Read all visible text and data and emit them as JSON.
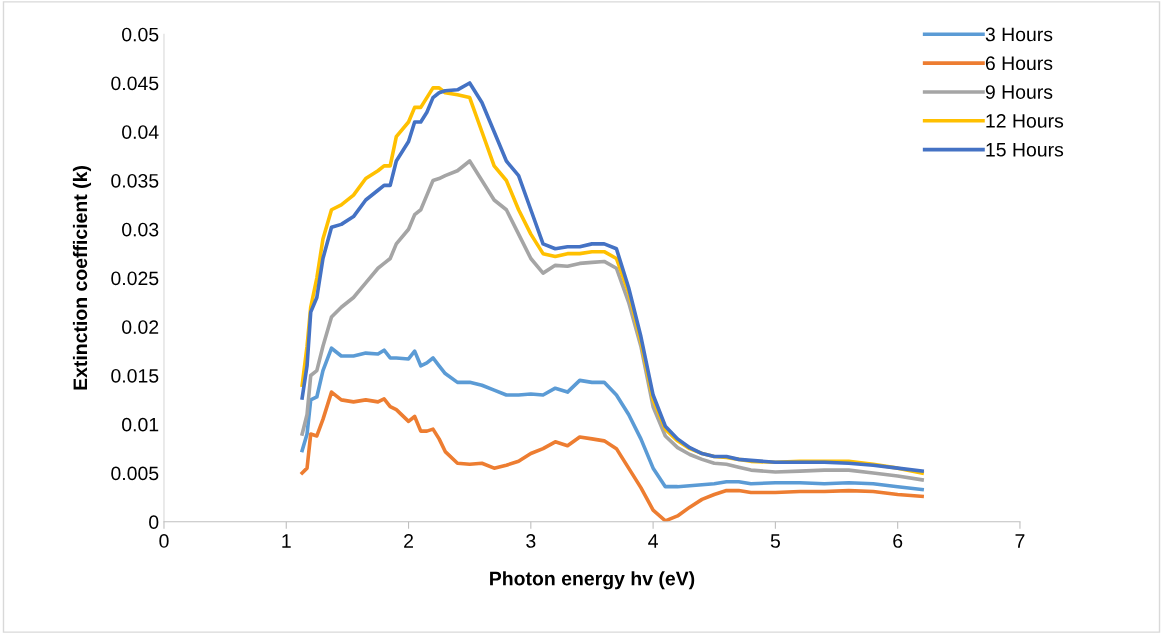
{
  "chart_data": {
    "type": "line",
    "xlabel": "Photon energy hv (eV)",
    "ylabel": "Extinction coefficient (k)",
    "x": [
      1.13,
      1.17,
      1.2,
      1.25,
      1.3,
      1.37,
      1.45,
      1.55,
      1.65,
      1.75,
      1.8,
      1.85,
      1.9,
      2.0,
      2.05,
      2.1,
      2.15,
      2.2,
      2.25,
      2.3,
      2.4,
      2.5,
      2.6,
      2.7,
      2.8,
      2.9,
      3.0,
      3.1,
      3.2,
      3.3,
      3.4,
      3.5,
      3.6,
      3.7,
      3.8,
      3.9,
      4.0,
      4.1,
      4.2,
      4.3,
      4.4,
      4.5,
      4.6,
      4.7,
      4.8,
      5.0,
      5.2,
      5.4,
      5.6,
      5.8,
      6.0,
      6.2
    ],
    "series": [
      {
        "name": "3 Hours",
        "color": "#5b9bd5",
        "values": [
          0.0073,
          0.009,
          0.0125,
          0.0128,
          0.0155,
          0.0178,
          0.017,
          0.017,
          0.0173,
          0.0172,
          0.0176,
          0.0168,
          0.0168,
          0.0167,
          0.0175,
          0.016,
          0.0163,
          0.0168,
          0.016,
          0.0152,
          0.0143,
          0.0143,
          0.014,
          0.0135,
          0.013,
          0.013,
          0.0131,
          0.013,
          0.0137,
          0.0133,
          0.0145,
          0.0143,
          0.0143,
          0.013,
          0.011,
          0.0085,
          0.0055,
          0.0036,
          0.0036,
          0.0037,
          0.0038,
          0.0039,
          0.0041,
          0.0041,
          0.0039,
          0.004,
          0.004,
          0.0039,
          0.004,
          0.0039,
          0.0036,
          0.0033
        ]
      },
      {
        "name": "6 Hours",
        "color": "#ed7d31",
        "values": [
          0.005,
          0.0055,
          0.009,
          0.0088,
          0.0105,
          0.0133,
          0.0125,
          0.0123,
          0.0125,
          0.0123,
          0.0126,
          0.0118,
          0.0115,
          0.0103,
          0.0108,
          0.0093,
          0.0093,
          0.0095,
          0.0085,
          0.0072,
          0.006,
          0.0059,
          0.006,
          0.0055,
          0.0058,
          0.0062,
          0.007,
          0.0075,
          0.0082,
          0.0078,
          0.0087,
          0.0085,
          0.0083,
          0.0075,
          0.0055,
          0.0035,
          0.0012,
          0.0001,
          0.0006,
          0.0015,
          0.0023,
          0.0028,
          0.0032,
          0.0032,
          0.003,
          0.003,
          0.0031,
          0.0031,
          0.0032,
          0.0031,
          0.0028,
          0.0026
        ]
      },
      {
        "name": "9 Hours",
        "color": "#a5a5a5",
        "values": [
          0.009,
          0.011,
          0.015,
          0.0155,
          0.018,
          0.021,
          0.022,
          0.023,
          0.0245,
          0.026,
          0.0265,
          0.027,
          0.0285,
          0.03,
          0.0315,
          0.032,
          0.0335,
          0.035,
          0.0352,
          0.0355,
          0.036,
          0.037,
          0.035,
          0.033,
          0.032,
          0.0295,
          0.027,
          0.0255,
          0.0263,
          0.0262,
          0.0265,
          0.0266,
          0.0267,
          0.026,
          0.0225,
          0.018,
          0.0118,
          0.0088,
          0.0076,
          0.0069,
          0.0064,
          0.006,
          0.0059,
          0.0056,
          0.0053,
          0.0051,
          0.0052,
          0.0053,
          0.0053,
          0.005,
          0.0047,
          0.0043
        ]
      },
      {
        "name": "12 Hours",
        "color": "#ffc000",
        "values": [
          0.014,
          0.018,
          0.022,
          0.025,
          0.029,
          0.032,
          0.0325,
          0.0335,
          0.0352,
          0.036,
          0.0365,
          0.0365,
          0.0395,
          0.041,
          0.0425,
          0.0425,
          0.0435,
          0.0445,
          0.0445,
          0.044,
          0.0438,
          0.0435,
          0.04,
          0.0365,
          0.035,
          0.032,
          0.0295,
          0.0275,
          0.0272,
          0.0275,
          0.0275,
          0.0277,
          0.0277,
          0.027,
          0.0235,
          0.0185,
          0.0125,
          0.0095,
          0.0083,
          0.0075,
          0.007,
          0.0067,
          0.0066,
          0.0064,
          0.0062,
          0.0061,
          0.0062,
          0.0062,
          0.0062,
          0.0059,
          0.0055,
          0.005
        ]
      },
      {
        "name": "15 Hours",
        "color": "#4472c4",
        "values": [
          0.0127,
          0.016,
          0.0215,
          0.023,
          0.027,
          0.0302,
          0.0305,
          0.0313,
          0.033,
          0.034,
          0.0345,
          0.0345,
          0.037,
          0.039,
          0.041,
          0.041,
          0.042,
          0.0435,
          0.044,
          0.0442,
          0.0443,
          0.045,
          0.043,
          0.04,
          0.037,
          0.0355,
          0.032,
          0.0285,
          0.028,
          0.0282,
          0.0282,
          0.0285,
          0.0285,
          0.028,
          0.024,
          0.019,
          0.013,
          0.0098,
          0.0085,
          0.0076,
          0.007,
          0.0067,
          0.0067,
          0.0064,
          0.0063,
          0.0061,
          0.0061,
          0.0061,
          0.006,
          0.0058,
          0.0055,
          0.0052
        ]
      }
    ],
    "xlim": [
      0,
      7
    ],
    "xticks": [
      0,
      1,
      2,
      3,
      4,
      5,
      6,
      7
    ],
    "ylim": [
      0,
      0.05
    ],
    "yticks": [
      0,
      0.005,
      0.01,
      0.015,
      0.02,
      0.025,
      0.03,
      0.035,
      0.04,
      0.045,
      0.05
    ],
    "grid": false,
    "legend": "top right",
    "marker": "none",
    "line_style": "solid"
  }
}
